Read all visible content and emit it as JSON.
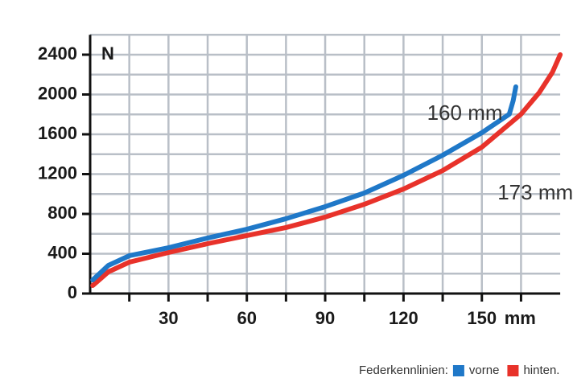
{
  "chart_data": {
    "type": "line",
    "y_unit": "N",
    "x_unit": "mm",
    "xlim": [
      0,
      180
    ],
    "ylim": [
      0,
      2600
    ],
    "xticks": [
      30,
      60,
      90,
      120,
      150
    ],
    "yticks": [
      0,
      400,
      800,
      1200,
      1600,
      2000,
      2400
    ],
    "x_grid_lines": [
      15,
      30,
      45,
      60,
      75,
      90,
      105,
      120,
      135,
      150,
      165
    ],
    "y_grid_lines": [
      200,
      400,
      600,
      800,
      1000,
      1200,
      1400,
      1600,
      1800,
      2000,
      2200,
      2400,
      2600
    ],
    "grid": true,
    "legend_title": "Federkennlinien:",
    "series": [
      {
        "name": "vorne",
        "color": "#1f78c8",
        "x": [
          1,
          7,
          15,
          30,
          45,
          60,
          75,
          90,
          105,
          120,
          135,
          150,
          160.5,
          162,
          163
        ],
        "values": [
          137,
          283,
          380,
          460,
          558,
          646,
          752,
          873,
          1010,
          1188,
          1390,
          1616,
          1802,
          1939,
          2077
        ]
      },
      {
        "name": "hinten.",
        "color": "#e8322a",
        "x": [
          1,
          7,
          15,
          30,
          45,
          60,
          75,
          90,
          105,
          120,
          135,
          150,
          165,
          172,
          177,
          180
        ],
        "values": [
          81,
          218,
          315,
          412,
          501,
          582,
          663,
          768,
          897,
          1050,
          1236,
          1471,
          1802,
          2020,
          2222,
          2400
        ]
      }
    ],
    "annotations": [
      {
        "text": "160 mm",
        "x": 129,
        "y": 1800
      },
      {
        "text": "173 mm",
        "x": 156,
        "y": 1000
      }
    ]
  }
}
